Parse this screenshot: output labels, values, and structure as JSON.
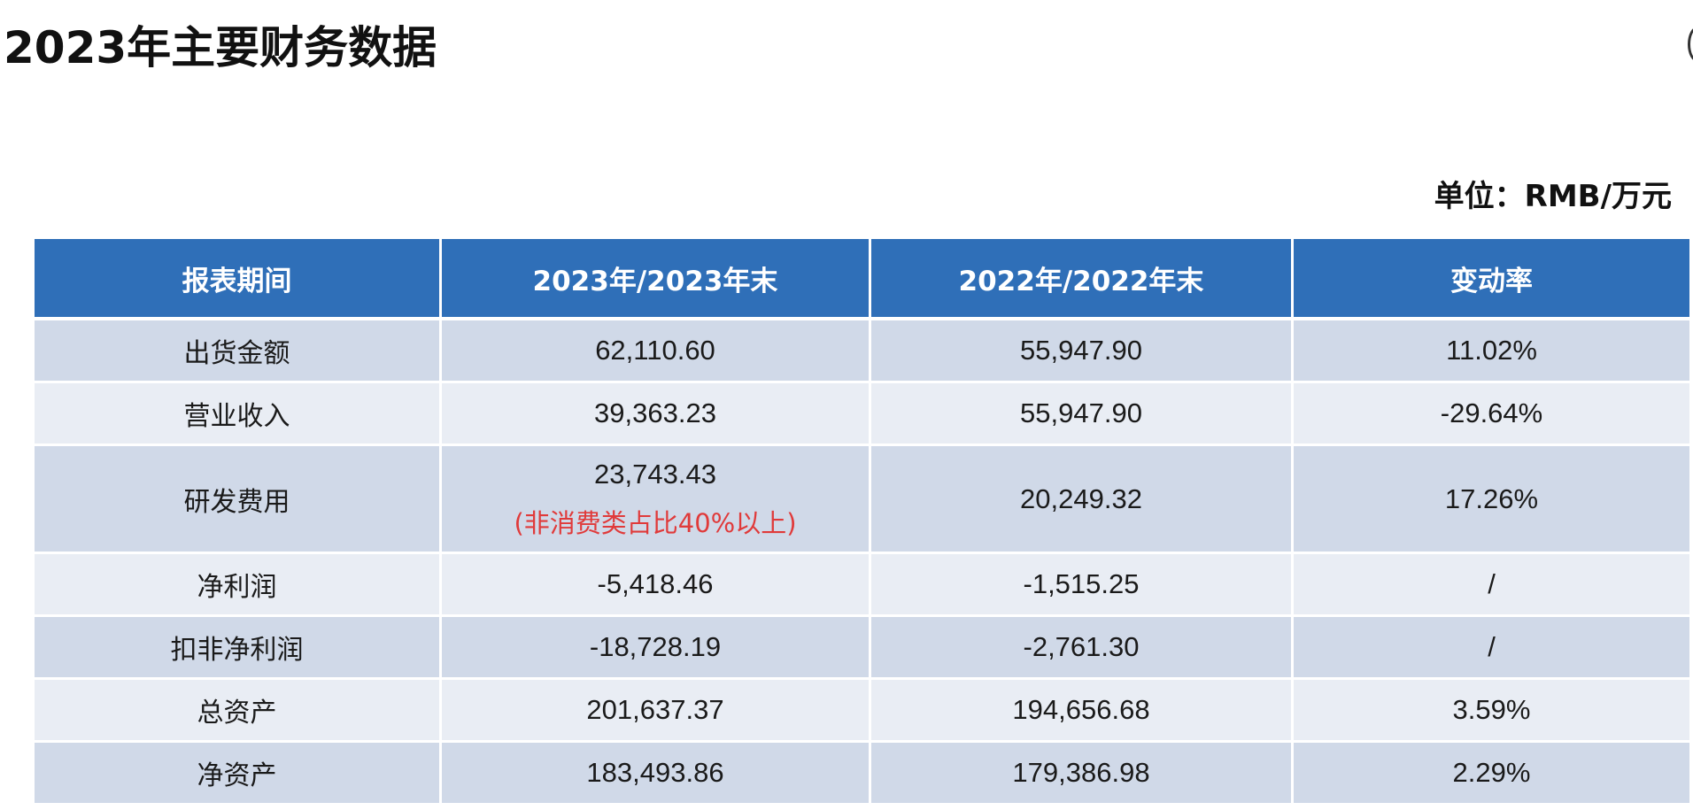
{
  "title": "2023年主要财务数据",
  "unit": "单位：RMB/万元",
  "table": {
    "headers": [
      "报表期间",
      "2023年/2023年末",
      "2022年/2022年末",
      "变动率"
    ],
    "rows": [
      {
        "label": "出货金额",
        "y2023": "62,110.60",
        "y2022": "55,947.90",
        "change": "11.02%"
      },
      {
        "label": "营业收入",
        "y2023": "39,363.23",
        "y2022": "55,947.90",
        "change": "-29.64%"
      },
      {
        "label": "研发费用",
        "y2023": "23,743.43",
        "note": "(非消费类占比40%以上)",
        "y2022": "20,249.32",
        "change": "17.26%"
      },
      {
        "label": "净利润",
        "y2023": "-5,418.46",
        "y2022": "-1,515.25",
        "change": "/"
      },
      {
        "label": "扣非净利润",
        "y2023": "-18,728.19",
        "y2022": "-2,761.30",
        "change": "/"
      },
      {
        "label": "总资产",
        "y2023": "201,637.37",
        "y2022": "194,656.68",
        "change": "3.59%"
      },
      {
        "label": "净资产",
        "y2023": "183,493.86",
        "y2022": "179,386.98",
        "change": "2.29%"
      }
    ]
  },
  "colors": {
    "header_bg": "#2f6fb8",
    "row_odd": "#d0d9e8",
    "row_even": "#e9edf4",
    "note": "#e03a3a"
  }
}
